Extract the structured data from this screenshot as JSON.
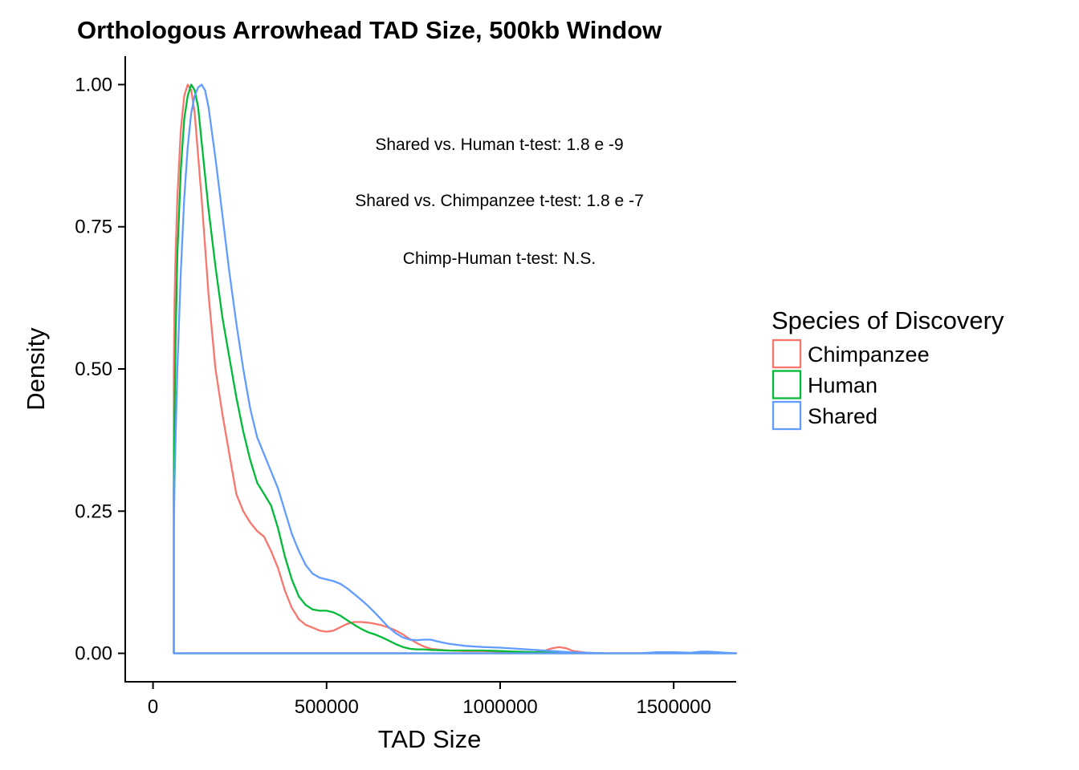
{
  "chart_data": {
    "type": "line",
    "title": "Orthologous Arrowhead TAD Size, 500kb Window",
    "xlabel": "TAD Size",
    "ylabel": "Density",
    "xlim": [
      -80000,
      1680000
    ],
    "ylim": [
      -0.05,
      1.05
    ],
    "x_ticks": [
      0,
      500000,
      1000000,
      1500000
    ],
    "x_tick_labels": [
      "0",
      "500000",
      "1000000",
      "1500000"
    ],
    "y_ticks": [
      0,
      0.25,
      0.5,
      0.75,
      1
    ],
    "y_tick_labels": [
      "0.00",
      "0.25",
      "0.50",
      "0.75",
      "1.00"
    ],
    "grid": false,
    "legend": {
      "title": "Species of Discovery",
      "position": "right"
    },
    "annotations": [
      "Shared vs. Human t-test: 1.8 e -9",
      "Shared vs. Chimpanzee t-test: 1.8 e -7",
      "Chimp-Human t-test: N.S."
    ],
    "series": [
      {
        "name": "Chimpanzee",
        "color": "#F8766D",
        "x": [
          60000,
          62000,
          65000,
          70000,
          80000,
          90000,
          100000,
          110000,
          120000,
          140000,
          160000,
          180000,
          200000,
          220000,
          240000,
          260000,
          280000,
          300000,
          320000,
          340000,
          360000,
          380000,
          400000,
          420000,
          440000,
          460000,
          480000,
          500000,
          520000,
          540000,
          560000,
          580000,
          600000,
          620000,
          640000,
          660000,
          680000,
          700000,
          720000,
          740000,
          760000,
          780000,
          800000,
          850000,
          900000,
          950000,
          1000000,
          1050000,
          1100000,
          1130000,
          1150000,
          1170000,
          1190000,
          1210000,
          1250000,
          1300000,
          1400000,
          1500000,
          1600000,
          1680000
        ],
        "y": [
          0.5,
          0.62,
          0.7,
          0.8,
          0.92,
          0.98,
          1.0,
          0.99,
          0.95,
          0.8,
          0.63,
          0.5,
          0.42,
          0.35,
          0.28,
          0.25,
          0.23,
          0.215,
          0.205,
          0.18,
          0.15,
          0.11,
          0.08,
          0.06,
          0.05,
          0.045,
          0.04,
          0.038,
          0.04,
          0.046,
          0.052,
          0.055,
          0.055,
          0.054,
          0.052,
          0.049,
          0.045,
          0.04,
          0.033,
          0.025,
          0.018,
          0.012,
          0.008,
          0.005,
          0.004,
          0.004,
          0.003,
          0.002,
          0.002,
          0.005,
          0.009,
          0.011,
          0.009,
          0.004,
          0.001,
          0.0,
          0.0,
          0.0,
          0.0,
          0.0
        ]
      },
      {
        "name": "Human",
        "color": "#00BA38",
        "x": [
          60000,
          62000,
          65000,
          70000,
          80000,
          90000,
          100000,
          110000,
          120000,
          130000,
          140000,
          160000,
          180000,
          200000,
          220000,
          240000,
          260000,
          280000,
          300000,
          320000,
          340000,
          360000,
          380000,
          400000,
          420000,
          440000,
          460000,
          480000,
          500000,
          520000,
          540000,
          560000,
          580000,
          600000,
          620000,
          640000,
          660000,
          680000,
          700000,
          720000,
          740000,
          760000,
          780000,
          800000,
          850000,
          900000,
          950000,
          1000000,
          1050000,
          1100000,
          1200000,
          1300000,
          1400000,
          1500000,
          1600000,
          1680000
        ],
        "y": [
          0.28,
          0.42,
          0.55,
          0.7,
          0.85,
          0.94,
          0.98,
          1.0,
          0.99,
          0.96,
          0.9,
          0.78,
          0.68,
          0.59,
          0.52,
          0.45,
          0.39,
          0.34,
          0.3,
          0.28,
          0.26,
          0.22,
          0.17,
          0.13,
          0.1,
          0.085,
          0.077,
          0.075,
          0.075,
          0.072,
          0.066,
          0.058,
          0.05,
          0.043,
          0.037,
          0.033,
          0.028,
          0.022,
          0.016,
          0.011,
          0.008,
          0.007,
          0.007,
          0.006,
          0.005,
          0.005,
          0.005,
          0.004,
          0.003,
          0.002,
          0.001,
          0.0,
          0.0,
          0.0,
          0.0,
          0.0
        ]
      },
      {
        "name": "Shared",
        "color": "#619CFF",
        "x": [
          60000,
          62000,
          65000,
          70000,
          80000,
          90000,
          100000,
          110000,
          120000,
          130000,
          140000,
          150000,
          160000,
          180000,
          200000,
          220000,
          240000,
          260000,
          280000,
          300000,
          320000,
          340000,
          360000,
          380000,
          400000,
          420000,
          440000,
          460000,
          480000,
          500000,
          520000,
          540000,
          560000,
          580000,
          600000,
          620000,
          640000,
          660000,
          680000,
          700000,
          720000,
          740000,
          760000,
          780000,
          800000,
          820000,
          850000,
          900000,
          950000,
          1000000,
          1050000,
          1100000,
          1150000,
          1200000,
          1300000,
          1400000,
          1450000,
          1500000,
          1550000,
          1580000,
          1600000,
          1650000,
          1680000
        ],
        "y": [
          0.22,
          0.3,
          0.38,
          0.5,
          0.67,
          0.8,
          0.89,
          0.95,
          0.98,
          0.995,
          1.0,
          0.99,
          0.96,
          0.87,
          0.77,
          0.67,
          0.58,
          0.5,
          0.43,
          0.38,
          0.35,
          0.32,
          0.29,
          0.25,
          0.21,
          0.18,
          0.155,
          0.14,
          0.133,
          0.13,
          0.127,
          0.122,
          0.114,
          0.104,
          0.094,
          0.083,
          0.071,
          0.058,
          0.045,
          0.035,
          0.028,
          0.024,
          0.023,
          0.024,
          0.024,
          0.021,
          0.017,
          0.013,
          0.011,
          0.01,
          0.008,
          0.006,
          0.004,
          0.002,
          0.0,
          0.0,
          0.002,
          0.002,
          0.001,
          0.003,
          0.003,
          0.001,
          0.0
        ]
      }
    ]
  }
}
